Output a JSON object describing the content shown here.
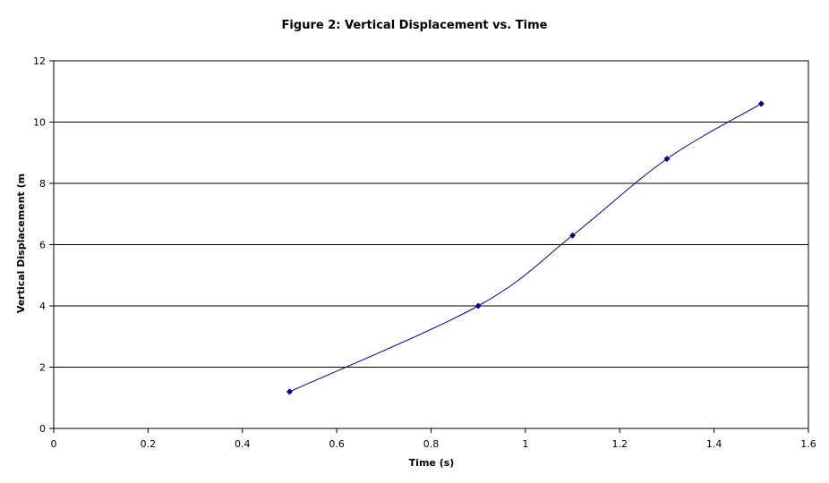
{
  "chart_data": {
    "type": "scatter",
    "title": "Figure 2: Vertical Displacement vs. Time",
    "xlabel": "Time (s)",
    "ylabel": "Vertical Displacement (m",
    "xlim": [
      0,
      1.6
    ],
    "ylim": [
      0,
      12
    ],
    "x_ticks": [
      0,
      0.2,
      0.4,
      0.6,
      0.8,
      1,
      1.2,
      1.4,
      1.6
    ],
    "y_ticks": [
      0,
      2,
      4,
      6,
      8,
      10,
      12
    ],
    "grid": {
      "horizontal": true,
      "vertical": false
    },
    "smoothed_line": true,
    "legend": "none",
    "series": [
      {
        "x": [
          0.5,
          0.9,
          1.1,
          1.3,
          1.5
        ],
        "y": [
          1.2,
          4.0,
          6.3,
          8.8,
          10.6
        ],
        "color": "#000080",
        "marker": "diamond"
      }
    ]
  }
}
